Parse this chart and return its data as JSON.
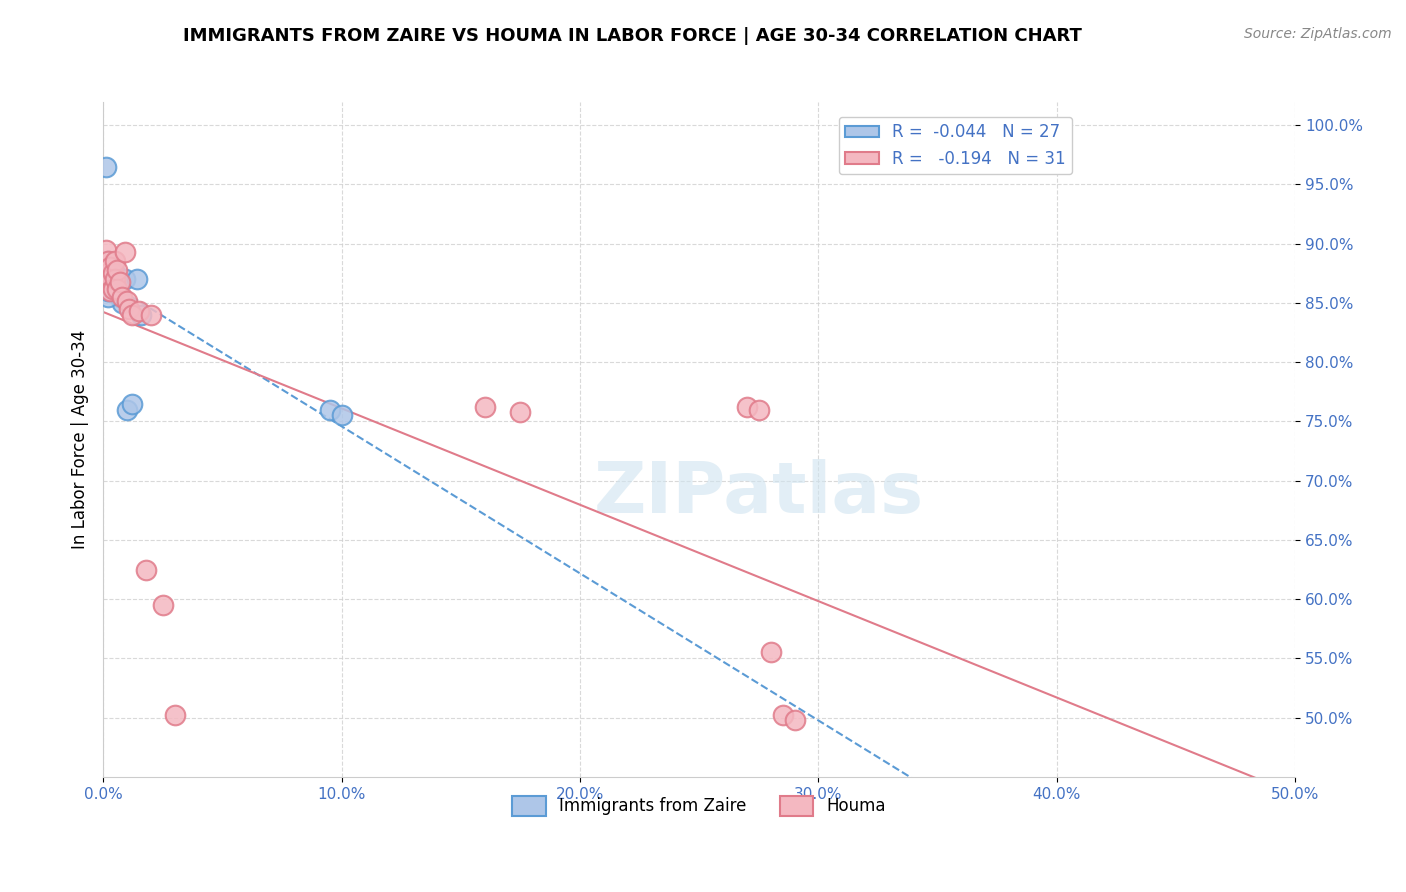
{
  "title": "IMMIGRANTS FROM ZAIRE VS HOUMA IN LABOR FORCE | AGE 30-34 CORRELATION CHART",
  "source": "Source: ZipAtlas.com",
  "ylabel": "In Labor Force | Age 30-34",
  "xlim": [
    0.0,
    0.5
  ],
  "ylim": [
    0.45,
    1.02
  ],
  "xtick_labels": [
    "0.0%",
    "10.0%",
    "20.0%",
    "30.0%",
    "40.0%",
    "50.0%"
  ],
  "xtick_values": [
    0.0,
    0.1,
    0.2,
    0.3,
    0.4,
    0.5
  ],
  "ytick_labels": [
    "50.0%",
    "55.0%",
    "60.0%",
    "65.0%",
    "70.0%",
    "75.0%",
    "80.0%",
    "85.0%",
    "90.0%",
    "95.0%",
    "100.0%"
  ],
  "ytick_values": [
    0.5,
    0.55,
    0.6,
    0.65,
    0.7,
    0.75,
    0.8,
    0.85,
    0.9,
    0.95,
    1.0
  ],
  "zaire_color": "#aec6e8",
  "zaire_edge_color": "#5b9bd5",
  "houma_color": "#f4b8c1",
  "houma_edge_color": "#e07b8a",
  "legend_r_zaire": "R =  -0.044   N = 27",
  "legend_r_houma": "R =   -0.194   N = 31",
  "legend_label_zaire": "Immigrants from Zaire",
  "legend_label_houma": "Houma",
  "trend_zaire_color": "#5b9bd5",
  "trend_houma_color": "#e07b8a",
  "watermark": "ZIPatlas",
  "zaire_x": [
    0.001,
    0.001,
    0.001,
    0.002,
    0.002,
    0.003,
    0.003,
    0.003,
    0.003,
    0.004,
    0.004,
    0.005,
    0.005,
    0.006,
    0.006,
    0.007,
    0.008,
    0.009,
    0.01,
    0.012,
    0.014,
    0.016,
    0.002,
    0.002,
    0.003,
    0.095,
    0.1
  ],
  "zaire_y": [
    0.965,
    0.875,
    0.87,
    0.885,
    0.88,
    0.88,
    0.875,
    0.87,
    0.865,
    0.875,
    0.87,
    0.865,
    0.875,
    0.87,
    0.86,
    0.855,
    0.85,
    0.87,
    0.76,
    0.765,
    0.87,
    0.84,
    0.855,
    0.86,
    0.865,
    0.76,
    0.755
  ],
  "houma_x": [
    0.001,
    0.001,
    0.002,
    0.002,
    0.003,
    0.003,
    0.003,
    0.004,
    0.004,
    0.005,
    0.005,
    0.006,
    0.006,
    0.007,
    0.008,
    0.009,
    0.01,
    0.011,
    0.012,
    0.015,
    0.018,
    0.02,
    0.025,
    0.03,
    0.16,
    0.175,
    0.27,
    0.275,
    0.28,
    0.285,
    0.29
  ],
  "houma_y": [
    0.88,
    0.895,
    0.885,
    0.875,
    0.88,
    0.87,
    0.86,
    0.875,
    0.862,
    0.885,
    0.87,
    0.878,
    0.862,
    0.868,
    0.855,
    0.893,
    0.852,
    0.845,
    0.84,
    0.843,
    0.625,
    0.84,
    0.595,
    0.502,
    0.762,
    0.758,
    0.762,
    0.76,
    0.555,
    0.502,
    0.498
  ]
}
